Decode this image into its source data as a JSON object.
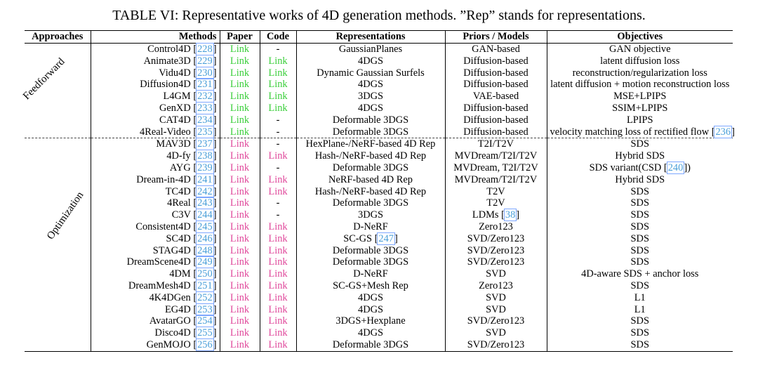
{
  "caption": "TABLE VI: Representative works of 4D generation methods. ”Rep” stands for representations.",
  "headers": {
    "approaches": "Approaches",
    "methods": "Methods",
    "paper": "Paper",
    "code": "Code",
    "representations": "Representations",
    "priors": "Priors / Models",
    "objectives": "Objectives"
  },
  "groups": {
    "feedforward": "Feedforward",
    "optimization": "Optimization"
  },
  "colors": {
    "feedforward_link": "#3ccf3c",
    "optimization_link": "#e04a9c",
    "citation": "#4a9fd8"
  },
  "rows": [
    {
      "group": "feedforward",
      "method": "Control4D",
      "ref": "228",
      "paper": "Link",
      "code": "-",
      "rep": "GaussianPlanes",
      "priors": "GAN-based",
      "obj": "GAN objective"
    },
    {
      "group": "feedforward",
      "method": "Animate3D",
      "ref": "229",
      "paper": "Link",
      "code": "Link",
      "rep": "4DGS",
      "priors": "Diffusion-based",
      "obj": "latent diffusion loss"
    },
    {
      "group": "feedforward",
      "method": "Vidu4D",
      "ref": "230",
      "paper": "Link",
      "code": "Link",
      "rep": "Dynamic Gaussian Surfels",
      "priors": "Diffusion-based",
      "obj": "reconstruction/regularization loss"
    },
    {
      "group": "feedforward",
      "method": "Diffusion4D",
      "ref": "231",
      "paper": "Link",
      "code": "Link",
      "rep": "4DGS",
      "priors": "Diffusion-based",
      "obj": "latent diffusion + motion reconstruction loss"
    },
    {
      "group": "feedforward",
      "method": "L4GM",
      "ref": "232",
      "paper": "Link",
      "code": "Link",
      "rep": "3DGS",
      "priors": "VAE-based",
      "obj": "MSE+LPIPS"
    },
    {
      "group": "feedforward",
      "method": "GenXD",
      "ref": "233",
      "paper": "Link",
      "code": "Link",
      "rep": "4DGS",
      "priors": "Diffusion-based",
      "obj": "SSIM+LPIPS"
    },
    {
      "group": "feedforward",
      "method": "CAT4D",
      "ref": "234",
      "paper": "Link",
      "code": "-",
      "rep": "Deformable 3DGS",
      "priors": "Diffusion-based",
      "obj": "LPIPS"
    },
    {
      "group": "feedforward",
      "method": "4Real-Video",
      "ref": "235",
      "paper": "Link",
      "code": "-",
      "rep": "Deformable 3DGS",
      "priors": "Diffusion-based",
      "obj": "velocity matching loss of rectified flow",
      "obj_ref": "236"
    },
    {
      "group": "optimization",
      "method": "MAV3D",
      "ref": "237",
      "paper": "Link",
      "code": "-",
      "rep": "HexPlane-/NeRF-based 4D Rep",
      "priors": "T2I/T2V",
      "obj": "SDS"
    },
    {
      "group": "optimization",
      "method": "4D-fy",
      "ref": "238",
      "paper": "Link",
      "code": "Link",
      "rep": "Hash-/NeRF-based 4D Rep",
      "priors": "MVDream/T2I/T2V",
      "obj": "Hybrid SDS"
    },
    {
      "group": "optimization",
      "method": "AYG",
      "ref": "239",
      "paper": "Link",
      "code": "-",
      "rep": "Deformable 3DGS",
      "priors": "MVDream, T2I/T2V",
      "obj": "SDS variant(CSD",
      "obj_ref": "240",
      "obj_suffix": ")"
    },
    {
      "group": "optimization",
      "method": "Dream-in-4D",
      "ref": "241",
      "paper": "Link",
      "code": "Link",
      "rep": "NeRF-based 4D Rep",
      "priors": "MVDream/T2I/T2V",
      "obj": "Hybrid SDS"
    },
    {
      "group": "optimization",
      "method": "TC4D",
      "ref": "242",
      "paper": "Link",
      "code": "Link",
      "rep": "Hash-/NeRF-based 4D Rep",
      "priors": "T2V",
      "obj": "SDS"
    },
    {
      "group": "optimization",
      "method": "4Real",
      "ref": "243",
      "paper": "Link",
      "code": "-",
      "rep": "Deformable 3DGS",
      "priors": "T2V",
      "obj": "SDS"
    },
    {
      "group": "optimization",
      "method": "C3V",
      "ref": "244",
      "paper": "Link",
      "code": "-",
      "rep": "3DGS",
      "priors": "LDMs",
      "priors_ref": "38",
      "obj": "SDS"
    },
    {
      "group": "optimization",
      "method": "Consistent4D",
      "ref": "245",
      "paper": "Link",
      "code": "Link",
      "rep": "D-NeRF",
      "priors": "Zero123",
      "obj": "SDS"
    },
    {
      "group": "optimization",
      "method": "SC4D",
      "ref": "246",
      "paper": "Link",
      "code": "Link",
      "rep": "SC-GS",
      "rep_ref": "247",
      "priors": "SVD/Zero123",
      "obj": "SDS"
    },
    {
      "group": "optimization",
      "method": "STAG4D",
      "ref": "248",
      "paper": "Link",
      "code": "Link",
      "rep": "Deformable 3DGS",
      "priors": "SVD/Zero123",
      "obj": "SDS"
    },
    {
      "group": "optimization",
      "method": "DreamScene4D",
      "ref": "249",
      "paper": "Link",
      "code": "Link",
      "rep": "Deformable 3DGS",
      "priors": "SVD/Zero123",
      "obj": "SDS"
    },
    {
      "group": "optimization",
      "method": "4DM",
      "ref": "250",
      "paper": "Link",
      "code": "Link",
      "rep": "D-NeRF",
      "priors": "SVD",
      "obj": "4D-aware SDS + anchor loss"
    },
    {
      "group": "optimization",
      "method": "DreamMesh4D",
      "ref": "251",
      "paper": "Link",
      "code": "Link",
      "rep": "SC-GS+Mesh Rep",
      "priors": "Zero123",
      "obj": "SDS"
    },
    {
      "group": "optimization",
      "method": "4K4DGen",
      "ref": "252",
      "paper": "Link",
      "code": "Link",
      "rep": "4DGS",
      "priors": "SVD",
      "obj": "L1"
    },
    {
      "group": "optimization",
      "method": "EG4D",
      "ref": "253",
      "paper": "Link",
      "code": "Link",
      "rep": "4DGS",
      "priors": "SVD",
      "obj": "L1"
    },
    {
      "group": "optimization",
      "method": "AvatarGO",
      "ref": "254",
      "paper": "Link",
      "code": "Link",
      "rep": "3DGS+Hexplane",
      "priors": "SVD/Zero123",
      "obj": "SDS"
    },
    {
      "group": "optimization",
      "method": "Disco4D",
      "ref": "255",
      "paper": "Link",
      "code": "Link",
      "rep": "4DGS",
      "priors": "SVD",
      "obj": "SDS"
    },
    {
      "group": "optimization",
      "method": "GenMOJO",
      "ref": "256",
      "paper": "Link",
      "code": "Link",
      "rep": "Deformable 3DGS",
      "priors": "SVD/Zero123",
      "obj": "SDS"
    }
  ]
}
